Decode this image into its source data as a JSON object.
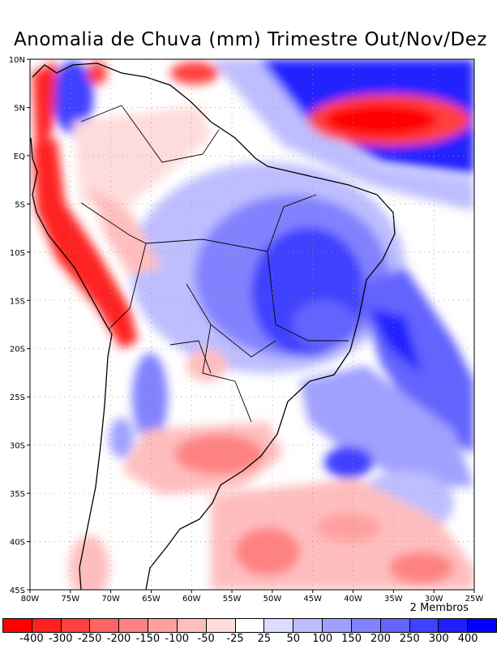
{
  "title": "Anomalia de Chuva (mm) Trimestre Out/Nov/Dez",
  "members_label": "2 Membros",
  "map": {
    "lon_range": [
      -80,
      -25
    ],
    "lat_range": [
      -45,
      10
    ],
    "lon_ticks": [
      "80W",
      "75W",
      "70W",
      "65W",
      "60W",
      "55W",
      "50W",
      "45W",
      "40W",
      "35W",
      "30W",
      "25W"
    ],
    "lat_ticks": [
      "10N",
      "5N",
      "EQ",
      "5S",
      "10S",
      "15S",
      "20S",
      "25S",
      "30S",
      "35S",
      "40S",
      "45S"
    ]
  },
  "colorbar": {
    "colors": [
      "#ff0000",
      "#ff2020",
      "#ff4040",
      "#ff6464",
      "#ff8282",
      "#ffa0a0",
      "#ffbebe",
      "#ffdcdc",
      "#ffffff",
      "#dcdcff",
      "#bebeff",
      "#a0a0ff",
      "#8282ff",
      "#6464ff",
      "#4040ff",
      "#2020ff",
      "#0000ff"
    ],
    "labels": [
      "-400",
      "-300",
      "-250",
      "-200",
      "-150",
      "-100",
      "-50",
      "-25",
      "25",
      "50",
      "100",
      "150",
      "200",
      "250",
      "300",
      "400"
    ]
  }
}
